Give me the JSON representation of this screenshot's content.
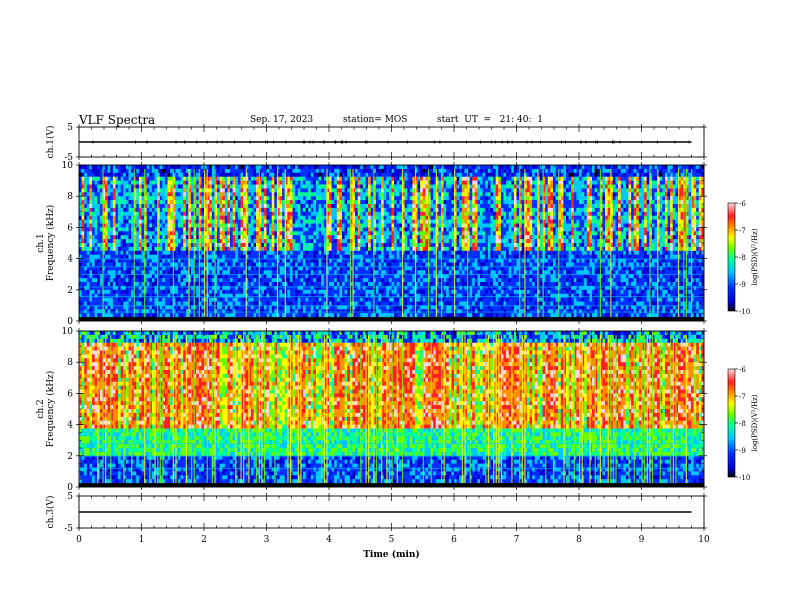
{
  "header": {
    "title": "VLF Spectra",
    "date": "Sep. 17, 2023",
    "station": "station= MOS",
    "start": "start  UT  =   21: 40:  1"
  },
  "colors": {
    "scale": [
      "#000000",
      "#0000d0",
      "#0030ff",
      "#00c8ff",
      "#00ff9a",
      "#6cff00",
      "#ffff00",
      "#ff9000",
      "#ff2020",
      "#ffd8d8"
    ],
    "trace": "#000000"
  },
  "chart_data": [
    {
      "type": "line",
      "ylabel": "ch.1(V)",
      "ylim": [
        -5,
        5
      ],
      "yticks": [
        "5",
        "-5"
      ],
      "x": [
        0,
        9.8
      ],
      "values": [
        0,
        0
      ],
      "note": "flat trace, small spikes"
    },
    {
      "type": "heatmap",
      "ylabel": "ch.1\nFrequency  (kHz)",
      "ylim": [
        0,
        10
      ],
      "yticks": [
        "0",
        "2",
        "4",
        "6",
        "8",
        "10"
      ],
      "xlim": [
        0,
        10
      ],
      "colorbar": {
        "label": "log(PSD)(V²/Hz)",
        "ticks": [
          "-6",
          "-7",
          "-8",
          "-9",
          "-10"
        ],
        "range": [
          -10,
          -6
        ]
      }
    },
    {
      "type": "heatmap",
      "ylabel": "ch.2\nFrequency  (kHz)",
      "ylim": [
        0,
        10
      ],
      "yticks": [
        "0",
        "2",
        "4",
        "6",
        "8",
        "10"
      ],
      "xlim": [
        0,
        10
      ],
      "colorbar": {
        "label": "log(PSD)(V²/Hz)",
        "ticks": [
          "-6",
          "-7",
          "-8",
          "-9",
          "-10"
        ],
        "range": [
          -10,
          -6
        ]
      }
    },
    {
      "type": "line",
      "ylabel": "ch.3(V)",
      "ylim": [
        -5,
        5
      ],
      "yticks": [
        "5",
        "-5"
      ],
      "x": [
        0,
        9.8
      ],
      "values": [
        0,
        0
      ]
    }
  ],
  "xaxis": {
    "label": "Time  (min)",
    "ticks": [
      "0",
      "1",
      "2",
      "3",
      "4",
      "5",
      "6",
      "7",
      "8",
      "9",
      "10"
    ],
    "xlim": [
      0,
      10
    ]
  }
}
